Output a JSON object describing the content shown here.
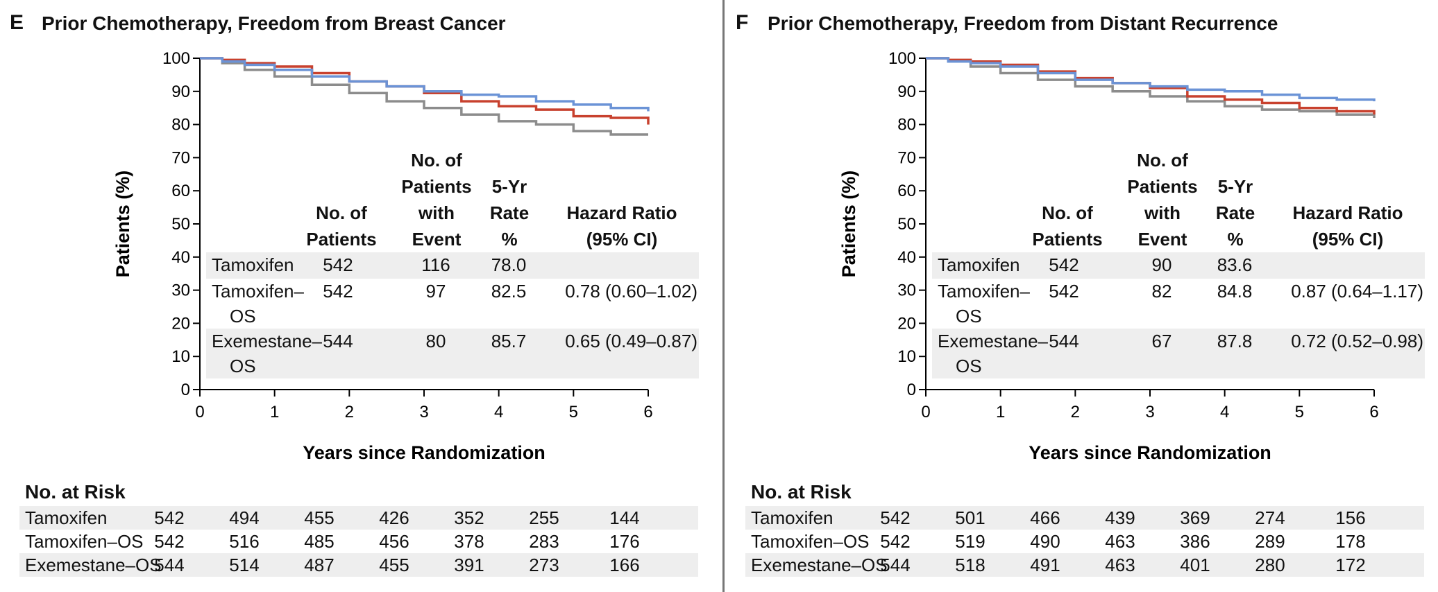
{
  "panels": [
    {
      "letter": "E",
      "title": "Prior Chemotherapy, Freedom from Breast Cancer",
      "legend_headers": {
        "patients": [
          "No. of",
          "Patients"
        ],
        "events": [
          "No. of",
          "Patients",
          "with",
          "Event"
        ],
        "rate": [
          "5-Yr",
          "Rate",
          "%"
        ],
        "hr": [
          "Hazard Ratio",
          "(95% CI)"
        ]
      },
      "legend_rows": [
        {
          "group": [
            "Tamoxifen"
          ],
          "patients": "542",
          "events": "116",
          "rate": "78.0",
          "hr": ""
        },
        {
          "group": [
            "Tamoxifen–",
            "OS"
          ],
          "patients": "542",
          "events": "97",
          "rate": "82.5",
          "hr": "0.78 (0.60–1.02)"
        },
        {
          "group": [
            "Exemestane–",
            "OS"
          ],
          "patients": "544",
          "events": "80",
          "rate": "85.7",
          "hr": "0.65 (0.49–0.87)"
        }
      ],
      "risk_title": "No. at Risk",
      "risk_rows": [
        {
          "name": "Tamoxifen",
          "values": [
            "542",
            "494",
            "455",
            "426",
            "352",
            "255",
            "144"
          ]
        },
        {
          "name": "Tamoxifen–OS",
          "values": [
            "542",
            "516",
            "485",
            "456",
            "378",
            "283",
            "176"
          ]
        },
        {
          "name": "Exemestane–OS",
          "values": [
            "544",
            "514",
            "487",
            "455",
            "391",
            "273",
            "166"
          ]
        }
      ]
    },
    {
      "letter": "F",
      "title": "Prior Chemotherapy, Freedom from Distant Recurrence",
      "legend_headers": {
        "patients": [
          "No. of",
          "Patients"
        ],
        "events": [
          "No. of",
          "Patients",
          "with",
          "Event"
        ],
        "rate": [
          "5-Yr",
          "Rate",
          "%"
        ],
        "hr": [
          "Hazard Ratio",
          "(95% CI)"
        ]
      },
      "legend_rows": [
        {
          "group": [
            "Tamoxifen"
          ],
          "patients": "542",
          "events": "90",
          "rate": "83.6",
          "hr": ""
        },
        {
          "group": [
            "Tamoxifen–",
            "OS"
          ],
          "patients": "542",
          "events": "82",
          "rate": "84.8",
          "hr": "0.87 (0.64–1.17)"
        },
        {
          "group": [
            "Exemestane–",
            "OS"
          ],
          "patients": "544",
          "events": "67",
          "rate": "87.8",
          "hr": "0.72 (0.52–0.98)"
        }
      ],
      "risk_title": "No. at Risk",
      "risk_rows": [
        {
          "name": "Tamoxifen",
          "values": [
            "542",
            "501",
            "466",
            "439",
            "369",
            "274",
            "156"
          ]
        },
        {
          "name": "Tamoxifen–OS",
          "values": [
            "542",
            "519",
            "490",
            "463",
            "386",
            "289",
            "178"
          ]
        },
        {
          "name": "Exemestane–OS",
          "values": [
            "544",
            "518",
            "491",
            "463",
            "401",
            "280",
            "172"
          ]
        }
      ]
    }
  ],
  "chart_data": [
    {
      "type": "line",
      "title": "Prior Chemotherapy, Freedom from Breast Cancer",
      "xlabel": "Years since Randomization",
      "ylabel": "Patients (%)",
      "xlim": [
        0,
        6
      ],
      "ylim": [
        0,
        100
      ],
      "xticks": [
        0,
        1,
        2,
        3,
        4,
        5,
        6
      ],
      "yticks": [
        0,
        10,
        20,
        30,
        40,
        50,
        60,
        70,
        80,
        90,
        100
      ],
      "grid": false,
      "series": [
        {
          "name": "Tamoxifen",
          "color": "#8c8c8c",
          "x": [
            0,
            0.3,
            0.6,
            1.0,
            1.5,
            2.0,
            2.5,
            3.0,
            3.5,
            4.0,
            4.5,
            5.0,
            5.5,
            6.0
          ],
          "y": [
            100,
            98.5,
            96.5,
            94.5,
            92,
            89.5,
            87,
            85,
            83,
            81,
            80,
            78,
            77,
            77
          ]
        },
        {
          "name": "Tamoxifen–OS",
          "color": "#c8412e",
          "x": [
            0,
            0.3,
            0.6,
            1.0,
            1.5,
            2.0,
            2.5,
            3.0,
            3.5,
            4.0,
            4.5,
            5.0,
            5.5,
            6.0
          ],
          "y": [
            100,
            99.5,
            98.5,
            97.5,
            95.5,
            93,
            91.5,
            89.5,
            87,
            85.5,
            84.5,
            82.5,
            82,
            80
          ]
        },
        {
          "name": "Exemestane–OS",
          "color": "#6b93d6",
          "x": [
            0,
            0.3,
            0.6,
            1.0,
            1.5,
            2.0,
            2.5,
            3.0,
            3.5,
            4.0,
            4.5,
            5.0,
            5.5,
            6.0
          ],
          "y": [
            100,
            99,
            98,
            96.5,
            94.5,
            93,
            91.5,
            90,
            89,
            88.5,
            87,
            86,
            85,
            84
          ]
        }
      ]
    },
    {
      "type": "line",
      "title": "Prior Chemotherapy, Freedom from Distant Recurrence",
      "xlabel": "Years since Randomization",
      "ylabel": "Patients (%)",
      "xlim": [
        0,
        6
      ],
      "ylim": [
        0,
        100
      ],
      "xticks": [
        0,
        1,
        2,
        3,
        4,
        5,
        6
      ],
      "yticks": [
        0,
        10,
        20,
        30,
        40,
        50,
        60,
        70,
        80,
        90,
        100
      ],
      "grid": false,
      "series": [
        {
          "name": "Tamoxifen",
          "color": "#8c8c8c",
          "x": [
            0,
            0.3,
            0.6,
            1.0,
            1.5,
            2.0,
            2.5,
            3.0,
            3.5,
            4.0,
            4.5,
            5.0,
            5.5,
            6.0
          ],
          "y": [
            100,
            99,
            97.5,
            95.5,
            93.5,
            91.5,
            90,
            88.5,
            87,
            85.5,
            84.5,
            84,
            83,
            82
          ]
        },
        {
          "name": "Tamoxifen–OS",
          "color": "#c8412e",
          "x": [
            0,
            0.3,
            0.6,
            1.0,
            1.5,
            2.0,
            2.5,
            3.0,
            3.5,
            4.0,
            4.5,
            5.0,
            5.5,
            6.0
          ],
          "y": [
            100,
            99.5,
            99,
            98,
            96,
            94,
            92.5,
            91,
            88.5,
            87.5,
            86.5,
            85,
            84,
            83
          ]
        },
        {
          "name": "Exemestane–OS",
          "color": "#6b93d6",
          "x": [
            0,
            0.3,
            0.6,
            1.0,
            1.5,
            2.0,
            2.5,
            3.0,
            3.5,
            4.0,
            4.5,
            5.0,
            5.5,
            6.0
          ],
          "y": [
            100,
            99,
            98.5,
            97.5,
            95.5,
            93.5,
            92.5,
            91.5,
            90.5,
            90,
            89,
            88,
            87.5,
            87
          ]
        }
      ]
    }
  ]
}
